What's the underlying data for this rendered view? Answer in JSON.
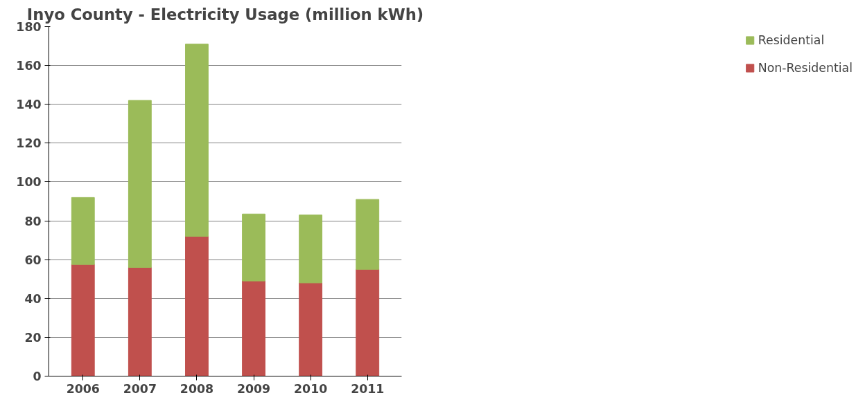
{
  "chart_data": {
    "type": "bar",
    "title": "Inyo County - Electricity Usage (million kWh)",
    "categories": [
      "2006",
      "2007",
      "2008",
      "2009",
      "2010",
      "2011"
    ],
    "stacked": true,
    "series": [
      {
        "name": "Non-Residential",
        "color": "#c0504d",
        "values": [
          57.5,
          56,
          72,
          49,
          48,
          55
        ]
      },
      {
        "name": "Residential",
        "color": "#9bbb59",
        "values": [
          34.5,
          86,
          99,
          34.5,
          35,
          36
        ]
      }
    ],
    "ylim": [
      0,
      180
    ],
    "yticks": [
      0,
      20,
      40,
      60,
      80,
      100,
      120,
      140,
      160,
      180
    ],
    "grid": "y",
    "legend": "right"
  }
}
